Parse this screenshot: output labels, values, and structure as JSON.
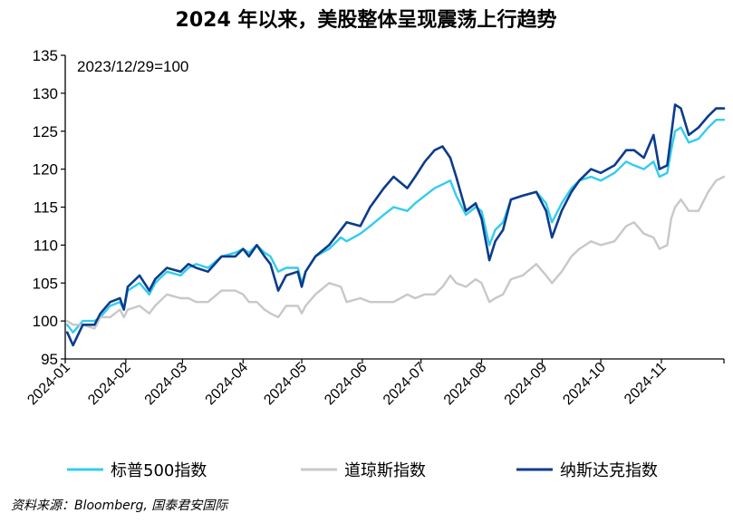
{
  "chart_data": {
    "type": "line",
    "title": "2024 年以来，美股整体呈现震荡上行趋势",
    "annotation": "2023/12/29=100",
    "source": "资料来源：Bloomberg, 国泰君安国际",
    "ylim": [
      95,
      135
    ],
    "yticks": [
      95,
      100,
      105,
      110,
      115,
      120,
      125,
      130,
      135
    ],
    "x_range": [
      "2024-01-01",
      "2024-12-03"
    ],
    "xticks": [
      "2024-01",
      "2024-02",
      "2024-03",
      "2024-04",
      "2024-05",
      "2024-06",
      "2024-07",
      "2024-08",
      "2024-09",
      "2024-10",
      "2024-11"
    ],
    "legend_position": "bottom",
    "grid": false,
    "series": [
      {
        "name": "标普500指数",
        "color": "#33CCEE",
        "points": [
          [
            "2024-01-02",
            99.5
          ],
          [
            "2024-01-05",
            98.5
          ],
          [
            "2024-01-10",
            100.0
          ],
          [
            "2024-01-16",
            100.0
          ],
          [
            "2024-01-19",
            100.5
          ],
          [
            "2024-01-24",
            102.0
          ],
          [
            "2024-01-29",
            102.5
          ],
          [
            "2024-01-31",
            101.5
          ],
          [
            "2024-02-02",
            104.0
          ],
          [
            "2024-02-08",
            105.0
          ],
          [
            "2024-02-13",
            103.5
          ],
          [
            "2024-02-16",
            105.0
          ],
          [
            "2024-02-22",
            106.5
          ],
          [
            "2024-02-29",
            106.0
          ],
          [
            "2024-03-04",
            107.0
          ],
          [
            "2024-03-08",
            107.5
          ],
          [
            "2024-03-14",
            107.0
          ],
          [
            "2024-03-21",
            108.5
          ],
          [
            "2024-03-28",
            109.0
          ],
          [
            "2024-04-01",
            109.5
          ],
          [
            "2024-04-04",
            109.0
          ],
          [
            "2024-04-08",
            110.0
          ],
          [
            "2024-04-12",
            109.0
          ],
          [
            "2024-04-15",
            108.5
          ],
          [
            "2024-04-19",
            106.5
          ],
          [
            "2024-04-23",
            107.0
          ],
          [
            "2024-04-29",
            107.0
          ],
          [
            "2024-05-01",
            105.0
          ],
          [
            "2024-05-03",
            106.5
          ],
          [
            "2024-05-08",
            108.5
          ],
          [
            "2024-05-15",
            109.5
          ],
          [
            "2024-05-21",
            111.0
          ],
          [
            "2024-05-24",
            110.5
          ],
          [
            "2024-05-31",
            111.5
          ],
          [
            "2024-06-05",
            112.5
          ],
          [
            "2024-06-12",
            114.0
          ],
          [
            "2024-06-17",
            115.0
          ],
          [
            "2024-06-24",
            114.5
          ],
          [
            "2024-06-28",
            115.5
          ],
          [
            "2024-07-03",
            116.5
          ],
          [
            "2024-07-08",
            117.5
          ],
          [
            "2024-07-12",
            118.0
          ],
          [
            "2024-07-16",
            118.5
          ],
          [
            "2024-07-19",
            116.5
          ],
          [
            "2024-07-24",
            114.0
          ],
          [
            "2024-07-29",
            115.0
          ],
          [
            "2024-08-01",
            114.5
          ],
          [
            "2024-08-05",
            110.0
          ],
          [
            "2024-08-08",
            112.0
          ],
          [
            "2024-08-12",
            113.0
          ],
          [
            "2024-08-16",
            116.0
          ],
          [
            "2024-08-22",
            116.5
          ],
          [
            "2024-08-29",
            117.0
          ],
          [
            "2024-09-03",
            115.5
          ],
          [
            "2024-09-06",
            113.0
          ],
          [
            "2024-09-11",
            115.5
          ],
          [
            "2024-09-16",
            117.5
          ],
          [
            "2024-09-20",
            118.5
          ],
          [
            "2024-09-26",
            119.0
          ],
          [
            "2024-10-01",
            118.5
          ],
          [
            "2024-10-08",
            119.5
          ],
          [
            "2024-10-14",
            121.0
          ],
          [
            "2024-10-18",
            120.5
          ],
          [
            "2024-10-23",
            120.0
          ],
          [
            "2024-10-28",
            121.0
          ],
          [
            "2024-10-31",
            119.0
          ],
          [
            "2024-11-04",
            119.5
          ],
          [
            "2024-11-06",
            122.5
          ],
          [
            "2024-11-08",
            125.0
          ],
          [
            "2024-11-11",
            125.5
          ],
          [
            "2024-11-15",
            123.5
          ],
          [
            "2024-11-20",
            124.0
          ],
          [
            "2024-11-25",
            125.5
          ],
          [
            "2024-11-29",
            126.5
          ],
          [
            "2024-12-03",
            126.5
          ]
        ]
      },
      {
        "name": "道琼斯指数",
        "color": "#C8C8C8",
        "points": [
          [
            "2024-01-02",
            100.0
          ],
          [
            "2024-01-05",
            99.5
          ],
          [
            "2024-01-10",
            99.5
          ],
          [
            "2024-01-16",
            99.0
          ],
          [
            "2024-01-19",
            100.5
          ],
          [
            "2024-01-24",
            100.5
          ],
          [
            "2024-01-29",
            101.5
          ],
          [
            "2024-01-31",
            100.5
          ],
          [
            "2024-02-02",
            101.5
          ],
          [
            "2024-02-08",
            102.0
          ],
          [
            "2024-02-13",
            101.0
          ],
          [
            "2024-02-16",
            102.0
          ],
          [
            "2024-02-22",
            103.5
          ],
          [
            "2024-02-29",
            103.0
          ],
          [
            "2024-03-04",
            103.0
          ],
          [
            "2024-03-08",
            102.5
          ],
          [
            "2024-03-14",
            102.5
          ],
          [
            "2024-03-21",
            104.0
          ],
          [
            "2024-03-28",
            104.0
          ],
          [
            "2024-04-01",
            103.5
          ],
          [
            "2024-04-04",
            102.5
          ],
          [
            "2024-04-08",
            102.5
          ],
          [
            "2024-04-12",
            101.5
          ],
          [
            "2024-04-15",
            101.0
          ],
          [
            "2024-04-19",
            100.5
          ],
          [
            "2024-04-23",
            102.0
          ],
          [
            "2024-04-29",
            102.0
          ],
          [
            "2024-05-01",
            101.0
          ],
          [
            "2024-05-03",
            102.0
          ],
          [
            "2024-05-08",
            103.5
          ],
          [
            "2024-05-15",
            105.0
          ],
          [
            "2024-05-21",
            104.5
          ],
          [
            "2024-05-24",
            102.5
          ],
          [
            "2024-05-31",
            103.0
          ],
          [
            "2024-06-05",
            102.5
          ],
          [
            "2024-06-12",
            102.5
          ],
          [
            "2024-06-17",
            102.5
          ],
          [
            "2024-06-24",
            103.5
          ],
          [
            "2024-06-28",
            103.0
          ],
          [
            "2024-07-03",
            103.5
          ],
          [
            "2024-07-08",
            103.5
          ],
          [
            "2024-07-12",
            104.5
          ],
          [
            "2024-07-16",
            106.0
          ],
          [
            "2024-07-19",
            105.0
          ],
          [
            "2024-07-24",
            104.5
          ],
          [
            "2024-07-29",
            105.5
          ],
          [
            "2024-08-01",
            105.0
          ],
          [
            "2024-08-05",
            102.5
          ],
          [
            "2024-08-08",
            103.0
          ],
          [
            "2024-08-12",
            103.5
          ],
          [
            "2024-08-16",
            105.5
          ],
          [
            "2024-08-22",
            106.0
          ],
          [
            "2024-08-29",
            107.5
          ],
          [
            "2024-09-03",
            106.0
          ],
          [
            "2024-09-06",
            105.0
          ],
          [
            "2024-09-11",
            106.5
          ],
          [
            "2024-09-16",
            108.5
          ],
          [
            "2024-09-20",
            109.5
          ],
          [
            "2024-09-26",
            110.5
          ],
          [
            "2024-10-01",
            110.0
          ],
          [
            "2024-10-08",
            110.5
          ],
          [
            "2024-10-14",
            112.5
          ],
          [
            "2024-10-18",
            113.0
          ],
          [
            "2024-10-23",
            111.5
          ],
          [
            "2024-10-28",
            111.0
          ],
          [
            "2024-10-31",
            109.5
          ],
          [
            "2024-11-04",
            110.0
          ],
          [
            "2024-11-06",
            113.5
          ],
          [
            "2024-11-08",
            115.0
          ],
          [
            "2024-11-11",
            116.0
          ],
          [
            "2024-11-15",
            114.5
          ],
          [
            "2024-11-20",
            114.5
          ],
          [
            "2024-11-25",
            117.0
          ],
          [
            "2024-11-29",
            118.5
          ],
          [
            "2024-12-03",
            119.0
          ]
        ]
      },
      {
        "name": "纳斯达克指数",
        "color": "#0B3C8C",
        "points": [
          [
            "2024-01-02",
            98.5
          ],
          [
            "2024-01-05",
            96.8
          ],
          [
            "2024-01-10",
            99.5
          ],
          [
            "2024-01-16",
            99.5
          ],
          [
            "2024-01-19",
            101.0
          ],
          [
            "2024-01-24",
            102.5
          ],
          [
            "2024-01-29",
            103.0
          ],
          [
            "2024-01-31",
            101.5
          ],
          [
            "2024-02-02",
            104.5
          ],
          [
            "2024-02-08",
            106.0
          ],
          [
            "2024-02-13",
            104.0
          ],
          [
            "2024-02-16",
            105.5
          ],
          [
            "2024-02-22",
            107.0
          ],
          [
            "2024-02-29",
            106.5
          ],
          [
            "2024-03-04",
            107.5
          ],
          [
            "2024-03-08",
            107.0
          ],
          [
            "2024-03-14",
            106.5
          ],
          [
            "2024-03-21",
            108.5
          ],
          [
            "2024-03-28",
            108.5
          ],
          [
            "2024-04-01",
            109.5
          ],
          [
            "2024-04-04",
            108.5
          ],
          [
            "2024-04-08",
            110.0
          ],
          [
            "2024-04-12",
            108.5
          ],
          [
            "2024-04-15",
            107.5
          ],
          [
            "2024-04-19",
            104.0
          ],
          [
            "2024-04-23",
            106.0
          ],
          [
            "2024-04-29",
            106.5
          ],
          [
            "2024-05-01",
            104.5
          ],
          [
            "2024-05-03",
            106.5
          ],
          [
            "2024-05-08",
            108.5
          ],
          [
            "2024-05-15",
            110.0
          ],
          [
            "2024-05-21",
            112.0
          ],
          [
            "2024-05-24",
            113.0
          ],
          [
            "2024-05-31",
            112.5
          ],
          [
            "2024-06-05",
            115.0
          ],
          [
            "2024-06-12",
            117.5
          ],
          [
            "2024-06-17",
            119.0
          ],
          [
            "2024-06-24",
            117.5
          ],
          [
            "2024-06-28",
            119.0
          ],
          [
            "2024-07-03",
            121.0
          ],
          [
            "2024-07-08",
            122.5
          ],
          [
            "2024-07-12",
            123.0
          ],
          [
            "2024-07-16",
            121.5
          ],
          [
            "2024-07-19",
            119.0
          ],
          [
            "2024-07-24",
            114.5
          ],
          [
            "2024-07-29",
            115.5
          ],
          [
            "2024-08-01",
            113.5
          ],
          [
            "2024-08-05",
            108.0
          ],
          [
            "2024-08-08",
            110.5
          ],
          [
            "2024-08-12",
            112.0
          ],
          [
            "2024-08-16",
            116.0
          ],
          [
            "2024-08-22",
            116.5
          ],
          [
            "2024-08-29",
            117.0
          ],
          [
            "2024-09-03",
            114.5
          ],
          [
            "2024-09-06",
            111.0
          ],
          [
            "2024-09-11",
            114.5
          ],
          [
            "2024-09-16",
            117.0
          ],
          [
            "2024-09-20",
            118.5
          ],
          [
            "2024-09-26",
            120.0
          ],
          [
            "2024-10-01",
            119.5
          ],
          [
            "2024-10-08",
            120.5
          ],
          [
            "2024-10-14",
            122.5
          ],
          [
            "2024-10-18",
            122.5
          ],
          [
            "2024-10-23",
            121.5
          ],
          [
            "2024-10-28",
            124.5
          ],
          [
            "2024-10-31",
            120.0
          ],
          [
            "2024-11-04",
            120.5
          ],
          [
            "2024-11-06",
            124.5
          ],
          [
            "2024-11-08",
            128.5
          ],
          [
            "2024-11-11",
            128.0
          ],
          [
            "2024-11-15",
            124.5
          ],
          [
            "2024-11-20",
            125.5
          ],
          [
            "2024-11-25",
            127.0
          ],
          [
            "2024-11-29",
            128.0
          ],
          [
            "2024-12-03",
            128.0
          ]
        ]
      }
    ]
  }
}
